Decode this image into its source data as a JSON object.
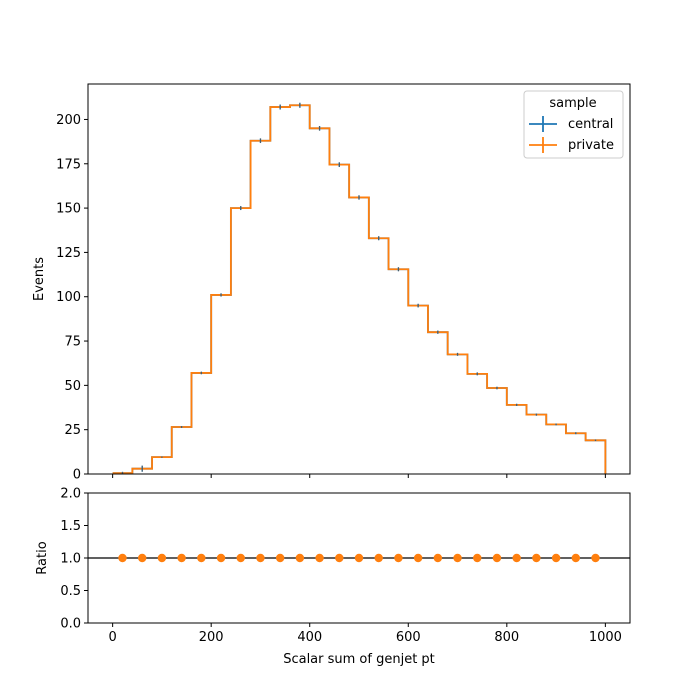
{
  "chart_data": [
    {
      "type": "step",
      "panel": "main",
      "xlabel": "",
      "ylabel": "Events",
      "xlim": [
        -50,
        1050
      ],
      "ylim": [
        0,
        220
      ],
      "xticks": [
        0,
        200,
        400,
        600,
        800,
        1000
      ],
      "yticks": [
        0,
        25,
        50,
        75,
        100,
        125,
        150,
        175,
        200
      ],
      "ytick_labels": [
        "0",
        "25",
        "50",
        "75",
        "100",
        "125",
        "150",
        "175",
        "200"
      ],
      "bin_edges": [
        0,
        40,
        80,
        120,
        160,
        200,
        240,
        280,
        320,
        360,
        400,
        440,
        480,
        520,
        560,
        600,
        640,
        680,
        720,
        760,
        800,
        840,
        880,
        920,
        960,
        1000
      ],
      "series": [
        {
          "name": "central",
          "color": "#1f77b4",
          "values": [
            0.5,
            3,
            9.5,
            26.5,
            57,
            101,
            150,
            188,
            207,
            208,
            195,
            174.5,
            156,
            133,
            115.5,
            95,
            80,
            67.5,
            56.5,
            48.5,
            39,
            33.5,
            28,
            23,
            19
          ]
        },
        {
          "name": "private",
          "color": "#ff7f0e",
          "values": [
            0.5,
            3,
            9.5,
            26.5,
            57,
            101,
            150,
            188,
            207,
            208,
            195,
            174.5,
            156,
            133,
            115.5,
            95,
            80,
            67.5,
            56.5,
            48.5,
            39,
            33.5,
            28,
            23,
            19
          ]
        }
      ],
      "errors": [
        0.7,
        1.7,
        0.3,
        0.5,
        0.7,
        0.9,
        1.1,
        1.3,
        1.4,
        1.4,
        1.3,
        1.3,
        1.2,
        1.1,
        1.1,
        1.0,
        0.9,
        0.8,
        0.8,
        0.7,
        0.6,
        0.6,
        0.5,
        0.5,
        0.4
      ],
      "legend": {
        "title": "sample",
        "placement": "top-right",
        "entries": [
          "central",
          "private"
        ]
      }
    },
    {
      "type": "scatter",
      "panel": "ratio",
      "xlabel": "Scalar sum of genjet pt",
      "ylabel": "Ratio",
      "xlim": [
        -50,
        1050
      ],
      "ylim": [
        0,
        2
      ],
      "xticks": [
        0,
        200,
        400,
        600,
        800,
        1000
      ],
      "xtick_labels": [
        "0",
        "200",
        "400",
        "600",
        "800",
        "1000"
      ],
      "yticks": [
        0,
        0.5,
        1,
        1.5,
        2
      ],
      "ytick_labels": [
        "0.0",
        "0.5",
        "1.0",
        "1.5",
        "2.0"
      ],
      "reference_line": 1.0,
      "x": [
        20,
        60,
        100,
        140,
        180,
        220,
        260,
        300,
        340,
        380,
        420,
        460,
        500,
        540,
        580,
        620,
        660,
        700,
        740,
        780,
        820,
        860,
        900,
        940,
        980
      ],
      "y": [
        1,
        1,
        1,
        1,
        1,
        1,
        1,
        1,
        1,
        1,
        1,
        1,
        1,
        1,
        1,
        1,
        1,
        1,
        1,
        1,
        1,
        1,
        1,
        1,
        1
      ],
      "color": "#ff7f0e"
    }
  ]
}
